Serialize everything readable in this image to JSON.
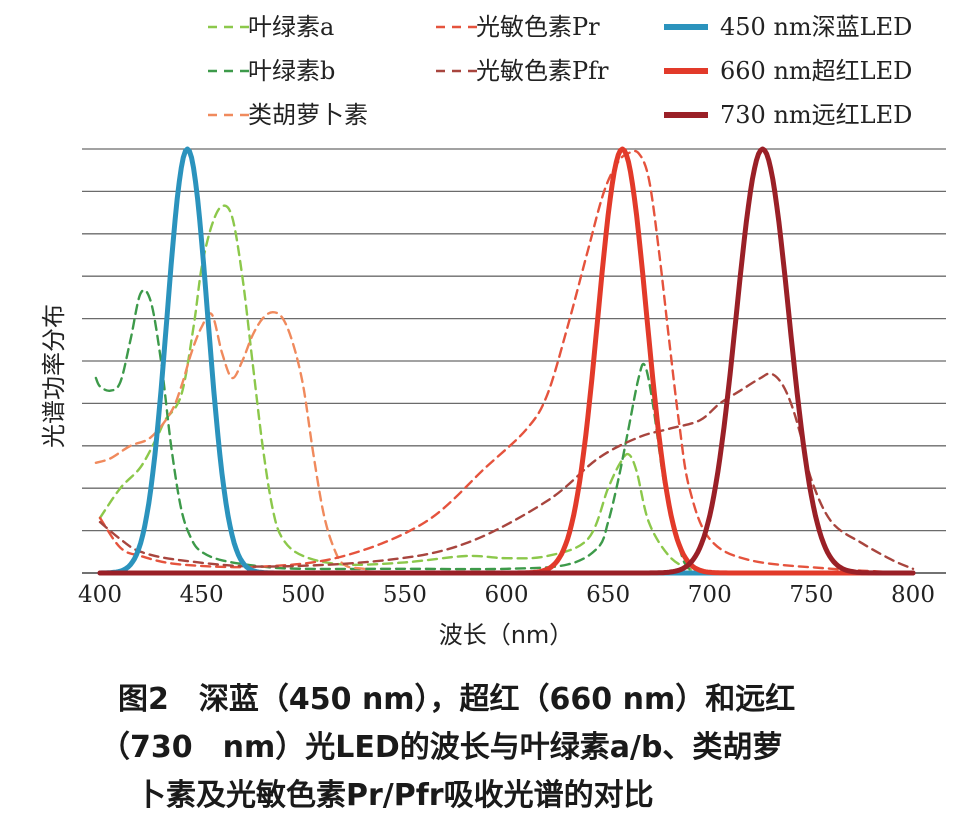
{
  "chart_data": {
    "type": "line",
    "xlabel": "波长（nm）",
    "ylabel": "光谱功率分布",
    "xlim": [
      400,
      800
    ],
    "ylim": [
      0,
      1.0
    ],
    "x_ticks": [
      400,
      450,
      500,
      550,
      600,
      650,
      700,
      750,
      800
    ],
    "grid": true,
    "gridlines": 10,
    "legend_position": "top",
    "series": [
      {
        "name": "叶绿素a",
        "style": "dashed",
        "color": "#8cc84b",
        "points": [
          [
            400,
            0.13
          ],
          [
            410,
            0.2
          ],
          [
            420,
            0.25
          ],
          [
            428,
            0.32
          ],
          [
            432,
            0.36
          ],
          [
            440,
            0.42
          ],
          [
            446,
            0.58
          ],
          [
            450,
            0.72
          ],
          [
            455,
            0.82
          ],
          [
            460,
            0.865
          ],
          [
            465,
            0.84
          ],
          [
            470,
            0.7
          ],
          [
            475,
            0.5
          ],
          [
            480,
            0.3
          ],
          [
            485,
            0.15
          ],
          [
            490,
            0.08
          ],
          [
            500,
            0.04
          ],
          [
            520,
            0.02
          ],
          [
            550,
            0.025
          ],
          [
            580,
            0.04
          ],
          [
            600,
            0.035
          ],
          [
            620,
            0.04
          ],
          [
            640,
            0.08
          ],
          [
            650,
            0.2
          ],
          [
            656,
            0.26
          ],
          [
            660,
            0.28
          ],
          [
            664,
            0.24
          ],
          [
            670,
            0.12
          ],
          [
            680,
            0.04
          ],
          [
            690,
            0.01
          ],
          [
            700,
            0.0
          ],
          [
            800,
            0.0
          ]
        ]
      },
      {
        "name": "叶绿素b",
        "style": "dashed",
        "color": "#3d9a4a",
        "points": [
          [
            398,
            0.46
          ],
          [
            400,
            0.44
          ],
          [
            405,
            0.43
          ],
          [
            410,
            0.45
          ],
          [
            415,
            0.55
          ],
          [
            420,
            0.66
          ],
          [
            425,
            0.64
          ],
          [
            430,
            0.5
          ],
          [
            435,
            0.3
          ],
          [
            440,
            0.15
          ],
          [
            445,
            0.08
          ],
          [
            450,
            0.05
          ],
          [
            460,
            0.03
          ],
          [
            480,
            0.015
          ],
          [
            500,
            0.01
          ],
          [
            550,
            0.01
          ],
          [
            600,
            0.01
          ],
          [
            630,
            0.02
          ],
          [
            645,
            0.06
          ],
          [
            650,
            0.12
          ],
          [
            655,
            0.22
          ],
          [
            660,
            0.34
          ],
          [
            665,
            0.46
          ],
          [
            668,
            0.49
          ],
          [
            672,
            0.4
          ],
          [
            678,
            0.2
          ],
          [
            685,
            0.06
          ],
          [
            690,
            0.01
          ],
          [
            700,
            0.0
          ],
          [
            800,
            0.0
          ]
        ]
      },
      {
        "name": "类胡萝卜素",
        "style": "dashed",
        "color": "#f08a5d",
        "points": [
          [
            398,
            0.26
          ],
          [
            405,
            0.27
          ],
          [
            415,
            0.3
          ],
          [
            425,
            0.32
          ],
          [
            435,
            0.38
          ],
          [
            440,
            0.44
          ],
          [
            445,
            0.52
          ],
          [
            450,
            0.58
          ],
          [
            455,
            0.61
          ],
          [
            460,
            0.52
          ],
          [
            465,
            0.46
          ],
          [
            470,
            0.5
          ],
          [
            475,
            0.56
          ],
          [
            480,
            0.6
          ],
          [
            485,
            0.615
          ],
          [
            490,
            0.6
          ],
          [
            495,
            0.54
          ],
          [
            500,
            0.44
          ],
          [
            505,
            0.28
          ],
          [
            510,
            0.14
          ],
          [
            515,
            0.06
          ],
          [
            520,
            0.02
          ],
          [
            530,
            0.01
          ],
          [
            560,
            0.0
          ],
          [
            800,
            0.0
          ]
        ]
      },
      {
        "name": "光敏色素Pr",
        "style": "dashed",
        "color": "#e5533d",
        "points": [
          [
            400,
            0.13
          ],
          [
            410,
            0.06
          ],
          [
            420,
            0.04
          ],
          [
            440,
            0.02
          ],
          [
            480,
            0.015
          ],
          [
            520,
            0.04
          ],
          [
            560,
            0.12
          ],
          [
            590,
            0.25
          ],
          [
            610,
            0.34
          ],
          [
            620,
            0.42
          ],
          [
            630,
            0.58
          ],
          [
            640,
            0.76
          ],
          [
            648,
            0.9
          ],
          [
            655,
            0.97
          ],
          [
            660,
            0.99
          ],
          [
            665,
            0.99
          ],
          [
            670,
            0.93
          ],
          [
            675,
            0.76
          ],
          [
            680,
            0.55
          ],
          [
            685,
            0.35
          ],
          [
            690,
            0.2
          ],
          [
            700,
            0.08
          ],
          [
            720,
            0.03
          ],
          [
            760,
            0.01
          ],
          [
            800,
            0.0
          ]
        ]
      },
      {
        "name": "光敏色素Pfr",
        "style": "dashed",
        "color": "#a8453e",
        "points": [
          [
            400,
            0.12
          ],
          [
            410,
            0.08
          ],
          [
            420,
            0.05
          ],
          [
            440,
            0.03
          ],
          [
            480,
            0.015
          ],
          [
            540,
            0.03
          ],
          [
            580,
            0.07
          ],
          [
            620,
            0.17
          ],
          [
            645,
            0.27
          ],
          [
            665,
            0.32
          ],
          [
            680,
            0.34
          ],
          [
            695,
            0.36
          ],
          [
            705,
            0.4
          ],
          [
            715,
            0.43
          ],
          [
            725,
            0.46
          ],
          [
            730,
            0.47
          ],
          [
            735,
            0.45
          ],
          [
            740,
            0.4
          ],
          [
            745,
            0.32
          ],
          [
            750,
            0.22
          ],
          [
            760,
            0.12
          ],
          [
            775,
            0.07
          ],
          [
            790,
            0.03
          ],
          [
            800,
            0.01
          ]
        ]
      },
      {
        "name": "450 nm深蓝LED",
        "style": "solid",
        "color": "#2b93bd",
        "peak": 443,
        "sigma": 10
      },
      {
        "name": "660 nm超红LED",
        "style": "solid",
        "color": "#e23a2a",
        "peak": 657,
        "sigma": 12
      },
      {
        "name": "730 nm远红LED",
        "style": "solid",
        "color": "#9a2027",
        "peak": 726,
        "sigma": 13
      }
    ]
  },
  "caption": {
    "line1": "图2　深蓝（450 nm），超红（660 nm）和远红",
    "line2": "（730　nm）光LED的波长与叶绿素a/b、类胡萝",
    "line3": "卜素及光敏色素Pr/Pfr吸收光谱的对比"
  }
}
